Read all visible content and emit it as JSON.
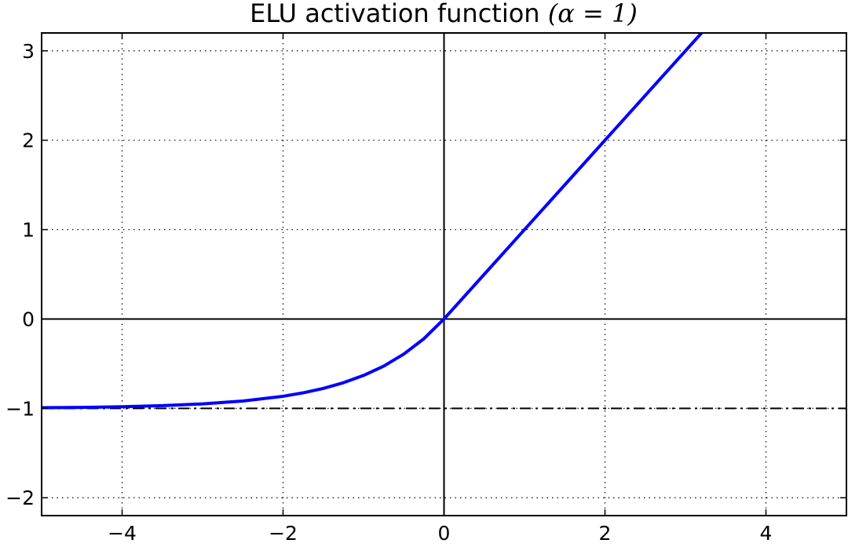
{
  "chart_data": {
    "type": "line",
    "title": {
      "prefix": "ELU activation function ",
      "math": "(α = 1)"
    },
    "xlabel": "",
    "ylabel": "",
    "xlim": [
      -5,
      5
    ],
    "ylim": [
      -2.2,
      3.2
    ],
    "x_ticks": [
      {
        "value": -4,
        "label": "−4"
      },
      {
        "value": -2,
        "label": "−2"
      },
      {
        "value": 0,
        "label": "0"
      },
      {
        "value": 2,
        "label": "2"
      },
      {
        "value": 4,
        "label": "4"
      }
    ],
    "y_ticks": [
      {
        "value": -2,
        "label": "−2"
      },
      {
        "value": -1,
        "label": "−1"
      },
      {
        "value": 0,
        "label": "0"
      },
      {
        "value": 1,
        "label": "1"
      },
      {
        "value": 2,
        "label": "2"
      },
      {
        "value": 3,
        "label": "3"
      }
    ],
    "grid": true,
    "series": [
      {
        "style": "solid",
        "color": "#0000ff",
        "x": [
          -5,
          -4.5,
          -4,
          -3.5,
          -3,
          -2.5,
          -2,
          -1.75,
          -1.5,
          -1.25,
          -1,
          -0.75,
          -0.5,
          -0.25,
          0,
          0.5,
          1,
          1.5,
          2,
          2.5,
          3,
          3.2
        ],
        "y": [
          -0.993,
          -0.989,
          -0.982,
          -0.97,
          -0.95,
          -0.918,
          -0.865,
          -0.826,
          -0.777,
          -0.713,
          -0.632,
          -0.528,
          -0.393,
          -0.221,
          0,
          0.5,
          1,
          1.5,
          2,
          2.5,
          3,
          3.2
        ]
      }
    ],
    "reference_lines": [
      {
        "axis": "y",
        "value": -1,
        "style": "dashdot",
        "color": "#000000"
      },
      {
        "axis": "y",
        "value": 0,
        "style": "solid",
        "color": "#000000"
      },
      {
        "axis": "x",
        "value": 0,
        "style": "solid",
        "color": "#000000"
      }
    ]
  }
}
